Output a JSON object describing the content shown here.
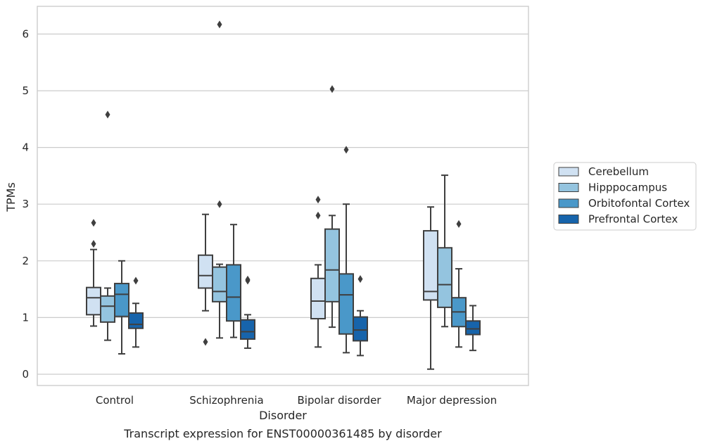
{
  "chart_data": {
    "type": "box",
    "title": "",
    "caption": "Transcript expression for ENST00000361485 by disorder",
    "xlabel": "Disorder",
    "ylabel": "TPMs",
    "ylim": [
      -0.2,
      6.5
    ],
    "yticks": [
      0,
      1,
      2,
      3,
      4,
      5,
      6
    ],
    "grid": "horizontal",
    "legend_position": "right",
    "categories": [
      "Control",
      "Schizophrenia",
      "Bipolar disorder",
      "Major depression"
    ],
    "series": [
      {
        "name": "Cerebellum",
        "color": "#d0e1f2",
        "boxes": [
          {
            "whisker_low": 0.85,
            "q1": 1.05,
            "median": 1.35,
            "q3": 1.53,
            "whisker_high": 2.2,
            "outliers": [
              2.3,
              2.67
            ]
          },
          {
            "whisker_low": 1.12,
            "q1": 1.52,
            "median": 1.74,
            "q3": 2.1,
            "whisker_high": 2.82,
            "outliers": [
              0.57
            ]
          },
          {
            "whisker_low": 0.48,
            "q1": 0.98,
            "median": 1.29,
            "q3": 1.69,
            "whisker_high": 1.93,
            "outliers": [
              2.8,
              3.08
            ]
          },
          {
            "whisker_low": 0.09,
            "q1": 1.31,
            "median": 1.46,
            "q3": 2.53,
            "whisker_high": 2.95,
            "outliers": []
          }
        ]
      },
      {
        "name": "Hipppocampus",
        "color": "#94c4df",
        "boxes": [
          {
            "whisker_low": 0.6,
            "q1": 0.92,
            "median": 1.2,
            "q3": 1.38,
            "whisker_high": 1.52,
            "outliers": [
              4.58
            ]
          },
          {
            "whisker_low": 0.64,
            "q1": 1.28,
            "median": 1.46,
            "q3": 1.89,
            "whisker_high": 1.94,
            "outliers": [
              3.0,
              6.17
            ]
          },
          {
            "whisker_low": 0.83,
            "q1": 1.28,
            "median": 1.84,
            "q3": 2.56,
            "whisker_high": 2.8,
            "outliers": [
              5.03
            ]
          },
          {
            "whisker_low": 0.84,
            "q1": 1.18,
            "median": 1.58,
            "q3": 2.23,
            "whisker_high": 3.51,
            "outliers": []
          }
        ]
      },
      {
        "name": "Orbitofontal Cortex",
        "color": "#4a98c9",
        "boxes": [
          {
            "whisker_low": 0.36,
            "q1": 1.02,
            "median": 1.41,
            "q3": 1.6,
            "whisker_high": 2.0,
            "outliers": []
          },
          {
            "whisker_low": 0.65,
            "q1": 0.94,
            "median": 1.36,
            "q3": 1.93,
            "whisker_high": 2.64,
            "outliers": []
          },
          {
            "whisker_low": 0.38,
            "q1": 0.71,
            "median": 1.4,
            "q3": 1.77,
            "whisker_high": 3.0,
            "outliers": [
              3.96
            ]
          },
          {
            "whisker_low": 0.48,
            "q1": 0.84,
            "median": 1.1,
            "q3": 1.35,
            "whisker_high": 1.86,
            "outliers": [
              2.65
            ]
          }
        ]
      },
      {
        "name": "Prefrontal Cortex",
        "color": "#1764ab",
        "boxes": [
          {
            "whisker_low": 0.48,
            "q1": 0.81,
            "median": 0.88,
            "q3": 1.08,
            "whisker_high": 1.25,
            "outliers": [
              1.65
            ]
          },
          {
            "whisker_low": 0.46,
            "q1": 0.62,
            "median": 0.75,
            "q3": 0.96,
            "whisker_high": 1.05,
            "outliers": [
              1.65,
              1.67
            ]
          },
          {
            "whisker_low": 0.33,
            "q1": 0.59,
            "median": 0.78,
            "q3": 1.01,
            "whisker_high": 1.12,
            "outliers": [
              1.68
            ]
          },
          {
            "whisker_low": 0.42,
            "q1": 0.7,
            "median": 0.8,
            "q3": 0.94,
            "whisker_high": 1.21,
            "outliers": []
          }
        ]
      }
    ]
  }
}
